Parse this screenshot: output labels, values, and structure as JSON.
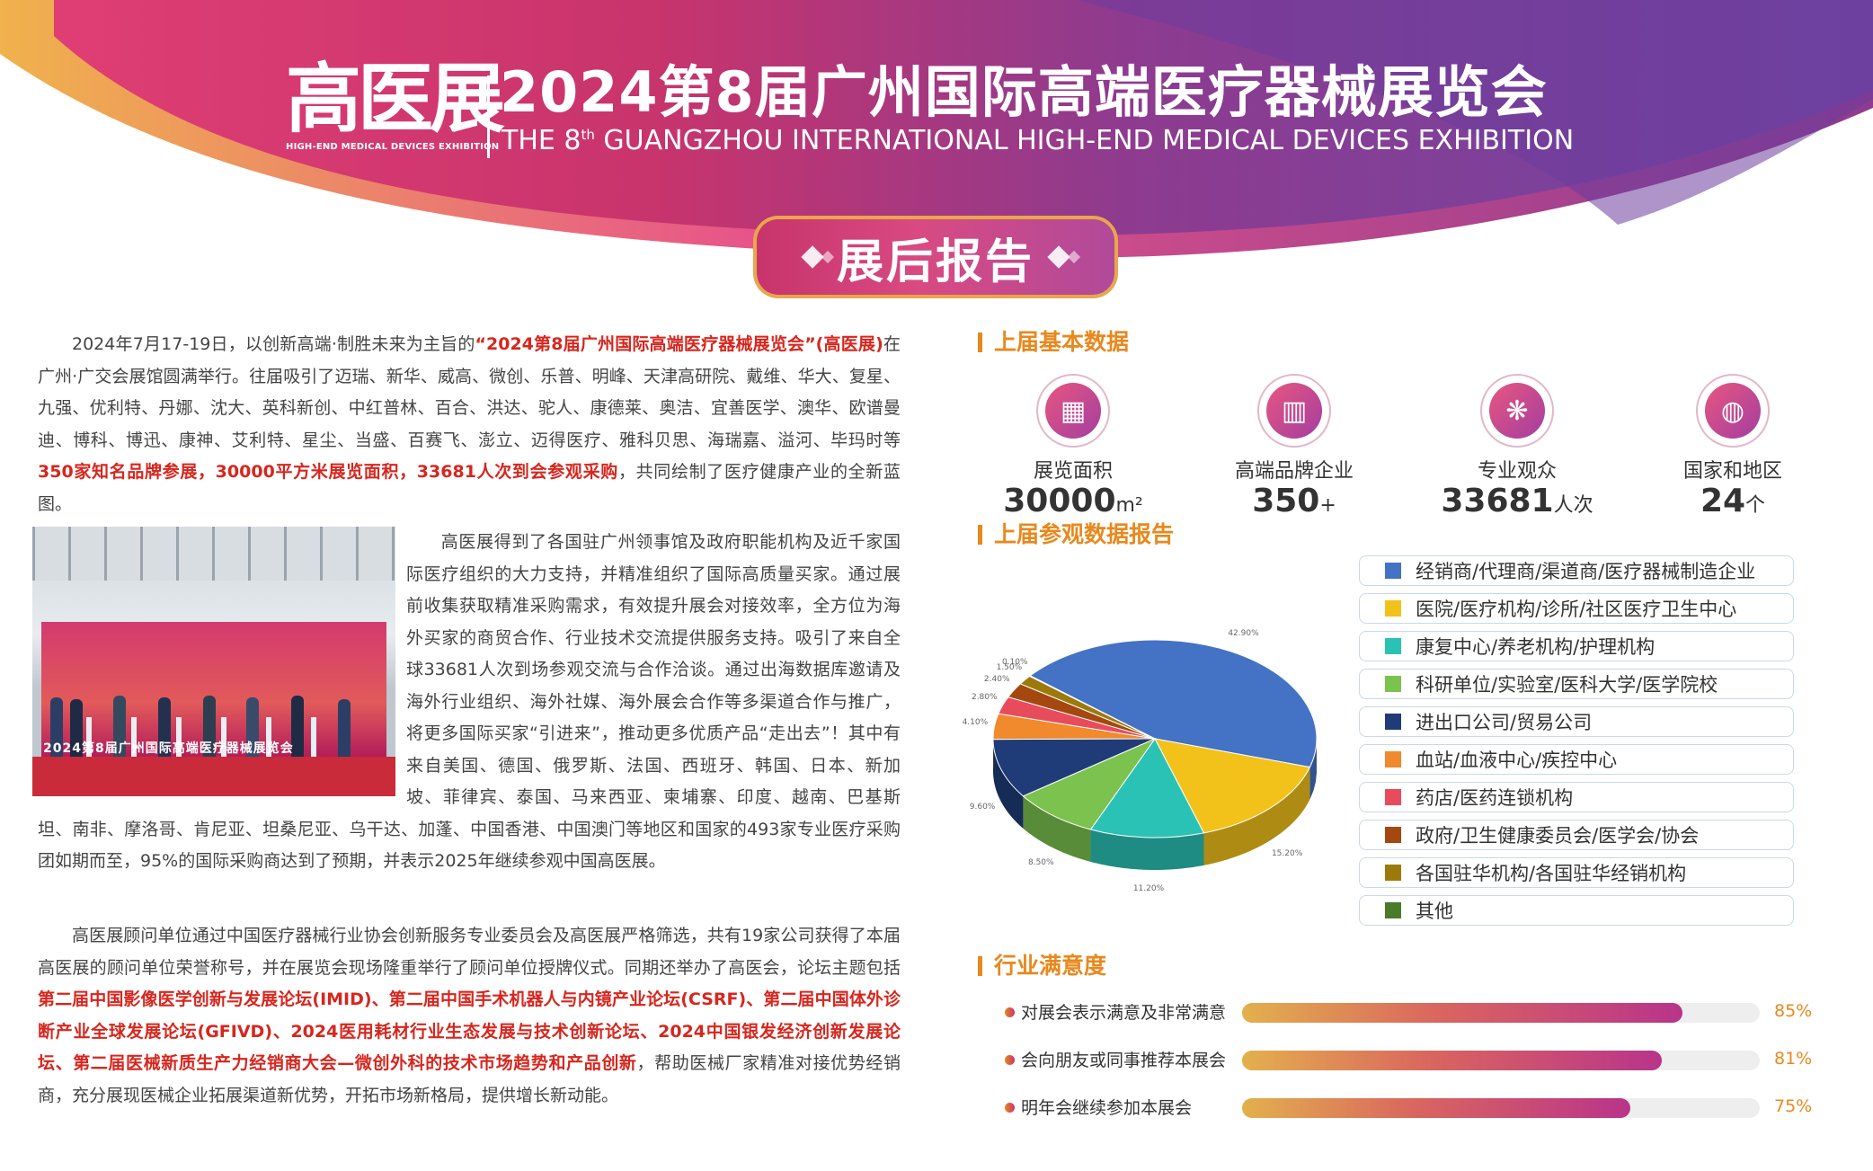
{
  "header": {
    "logo_cn": "高医展",
    "logo_en": "HIGH-END MEDICAL DEVICES EXHIBITION",
    "title_cn": "2024第8届广州国际高端医疗器械展览会",
    "title_en_pre": "THE 8",
    "title_en_sup": "th",
    "title_en_post": " GUANGZHOU INTERNATIONAL HIGH-END MEDICAL DEVICES EXHIBITION",
    "badge": "展后报告"
  },
  "article": {
    "p1": [
      {
        "t": "2024年7月17-19日，以创新高端·制胜未来为主旨的",
        "hl": false
      },
      {
        "t": "“2024第8届广州国际高端医疗器械展览会”(高医展)",
        "hl": true
      },
      {
        "t": "在广州·广交会展馆圆满举行。往届吸引了迈瑞、新华、威高、微创、乐普、明峰、天津高研院、戴维、华大、复星、九强、优利特、丹娜、沈大、英科新创、中红普林、百合、洪达、驼人、康德莱、奥洁、宜善医学、澳华、欧谱曼迪、博科、博迅、康神、艾利特、星尘、当盛、百赛飞、澎立、迈得医疗、雅科贝思、海瑞嘉、溢河、毕玛时等",
        "hl": false
      },
      {
        "t": "350家知名品牌参展，30000平方米展览面积，33681人次到会参观采购",
        "hl": true
      },
      {
        "t": "，共同绘制了医疗健康产业的全新蓝图。",
        "hl": false
      }
    ],
    "p2": "高医展得到了各国驻广州领事馆及政府职能机构及近千家国际医疗组织的大力支持，并精准组织了国际高质量买家。通过展前收集获取精准采购需求，有效提升展会对接效率，全方位为海外买家的商贸合作、行业技术交流提供服务支持。吸引了来自全球33681人次到场参观交流与合作洽谈。通过出海数据库邀请及海外行业组织、海外社媒、海外展会合作等多渠道合作与推广，将更多国际买家“引进来”，推动更多优质产品“走出去”！其中有来自美国、德国、俄罗斯、法国、西班牙、韩国、日本、新加坡、菲律宾、泰国、马来西亚、柬埔寨、印度、越南、巴基斯坦、南非、摩洛哥、肯尼亚、坦桑尼亚、乌干达、加蓬、中国香港、中国澳门等地区和国家的493家专业医疗采购团如期而至，95%的国际采购商达到了预期，并表示2025年继续参观中国高医展。",
    "photo_board_text": "2024第8届广州国际高端医疗器械展览会",
    "p3": [
      {
        "t": "高医展顾问单位通过中国医疗器械行业协会创新服务专业委员会及高医展严格筛选，共有19家公司获得了本届高医展的顾问单位荣誉称号，并在展览会现场隆重举行了顾问单位授牌仪式。同期还举办了高医会，论坛主题包括",
        "hl": false
      },
      {
        "t": "第二届中国影像医学创新与发展论坛(IMID)、第二届中国手术机器人与内镜产业论坛(CSRF)、第二届中国体外诊断产业全球发展论坛(GFIVD)、2024医用耗材行业生态发展与技术创新论坛、2024中国银发经济创新发展论坛、第二届医械新质生产力经销商大会—微创外科的技术市场趋势和产品创新",
        "hl": true
      },
      {
        "t": "，帮助医械厂家精准对接优势经销商，充分展现医械企业拓展渠道新优势，开拓市场新格局，提供增长新动能。",
        "hl": false
      }
    ]
  },
  "basic": {
    "title": "上届基本数据",
    "stats": [
      {
        "label": "展览面积",
        "value": "30000",
        "unit": "m²",
        "icon": "area-icon",
        "glyph": "▦"
      },
      {
        "label": "高端品牌企业",
        "value": "350",
        "unit": "+",
        "icon": "building-icon",
        "glyph": "▥"
      },
      {
        "label": "专业观众",
        "value": "33681",
        "unit": "人次",
        "icon": "audience-icon",
        "glyph": "❋"
      },
      {
        "label": "国家和地区",
        "value": "24",
        "unit": "个",
        "icon": "globe-icon",
        "glyph": "◍"
      }
    ]
  },
  "visitor": {
    "title": "上届参观数据报告"
  },
  "chart_data": {
    "type": "pie",
    "series": [
      {
        "name": "经销商/代理商/渠道商/医疗器械制造企业",
        "value": 42.9,
        "label": "42.90%",
        "color": "#4472c4"
      },
      {
        "name": "医院/医疗机构/诊所/社区医疗卫生中心",
        "value": 15.2,
        "label": "15.20%",
        "color": "#f2c21a"
      },
      {
        "name": "康复中心/养老机构/护理机构",
        "value": 11.2,
        "label": "11.20%",
        "color": "#2bc2b6"
      },
      {
        "name": "科研单位/实验室/医科大学/医学院校",
        "value": 8.5,
        "label": "8.50%",
        "color": "#7cc24e"
      },
      {
        "name": "进出口公司/贸易公司",
        "value": 9.6,
        "label": "9.60%",
        "color": "#1f3c78"
      },
      {
        "name": "血站/血液中心/疾控中心",
        "value": 4.1,
        "label": "4.10%",
        "color": "#f08a2c"
      },
      {
        "name": "药店/医药连锁机构",
        "value": 2.8,
        "label": "2.80%",
        "color": "#e84c5c"
      },
      {
        "name": "政府/卫生健康委员会/医学会/协会",
        "value": 2.4,
        "label": "2.40%",
        "color": "#a4480f"
      },
      {
        "name": "各国驻华机构/各国驻华经销机构",
        "value": 1.5,
        "label": "1.50%",
        "color": "#9c7a0a"
      },
      {
        "name": "其他",
        "value": 0.1,
        "label": "0.10%",
        "color": "#4a7a2a"
      }
    ]
  },
  "satisfaction": {
    "title": "行业满意度",
    "items": [
      {
        "label": "对展会表示满意及非常满意",
        "value": 85,
        "pct": "85%"
      },
      {
        "label": "会向朋友或同事推荐本展会",
        "value": 81,
        "pct": "81%"
      },
      {
        "label": "明年会继续参加本展会",
        "value": 75,
        "pct": "75%"
      }
    ]
  }
}
